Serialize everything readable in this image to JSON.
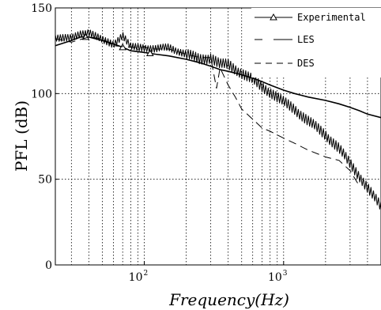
{
  "chart_data": {
    "type": "line",
    "xlabel": "Frequency(Hz)",
    "ylabel": "PFL (dB)",
    "x_scale": "log",
    "xlim": [
      23,
      5000
    ],
    "ylim": [
      0,
      150
    ],
    "y_ticks": [
      0,
      50,
      100,
      150
    ],
    "x_tick_labels": [
      {
        "value": 100,
        "base": "10",
        "exponent": "2"
      },
      {
        "value": 1000,
        "base": "10",
        "exponent": "3"
      }
    ],
    "grid": true,
    "legend_position": "top-right",
    "series": [
      {
        "name": "Experimental",
        "style": "solid-triangle",
        "color": "#000000",
        "x": [
          23,
          30,
          35,
          40,
          50,
          60,
          70,
          80,
          100,
          120,
          150,
          200,
          250,
          300,
          350,
          400,
          500,
          600,
          700,
          800,
          1000,
          1200,
          1500,
          2000,
          2500,
          3000,
          3500,
          4000,
          5000
        ],
        "y": [
          128,
          131,
          133,
          133,
          131,
          129,
          127,
          125,
          124,
          123,
          122,
          120,
          118,
          116,
          114,
          113,
          111,
          109,
          107,
          105,
          102,
          100,
          98,
          96,
          94,
          92,
          90,
          88,
          86
        ],
        "markers_x": [
          38,
          70,
          110
        ]
      },
      {
        "name": "LES",
        "style": "long-dash",
        "color": "#000000",
        "x": [
          23,
          30,
          35,
          40,
          50,
          60,
          70,
          80,
          100,
          120,
          150,
          200,
          250,
          300,
          350,
          400,
          500,
          600,
          700,
          800,
          1000,
          1200,
          1500,
          2000,
          2500,
          3000,
          3500,
          4000,
          4500,
          5000
        ],
        "y": [
          133,
          132,
          135,
          136,
          131,
          129,
          134,
          127,
          127,
          126,
          127,
          123,
          120,
          121,
          117,
          117,
          112,
          108,
          104,
          101,
          95,
          91,
          84,
          76,
          68,
          59,
          52,
          45,
          39,
          34
        ],
        "jagged": true
      },
      {
        "name": "DES",
        "style": "short-dash",
        "color": "#000000",
        "x": [
          23,
          30,
          40,
          50,
          60,
          80,
          100,
          120,
          150,
          200,
          250,
          300,
          330,
          350,
          400,
          450,
          500,
          600,
          700,
          800,
          1000,
          1200,
          1500,
          2000,
          2500,
          3000,
          3500
        ],
        "y": [
          132,
          130,
          133,
          132,
          128,
          127,
          127,
          126,
          126,
          123,
          121,
          121,
          103,
          115,
          105,
          98,
          91,
          85,
          80,
          78,
          74,
          71,
          67,
          63,
          61,
          55,
          46
        ],
        "jagged": false
      }
    ]
  }
}
